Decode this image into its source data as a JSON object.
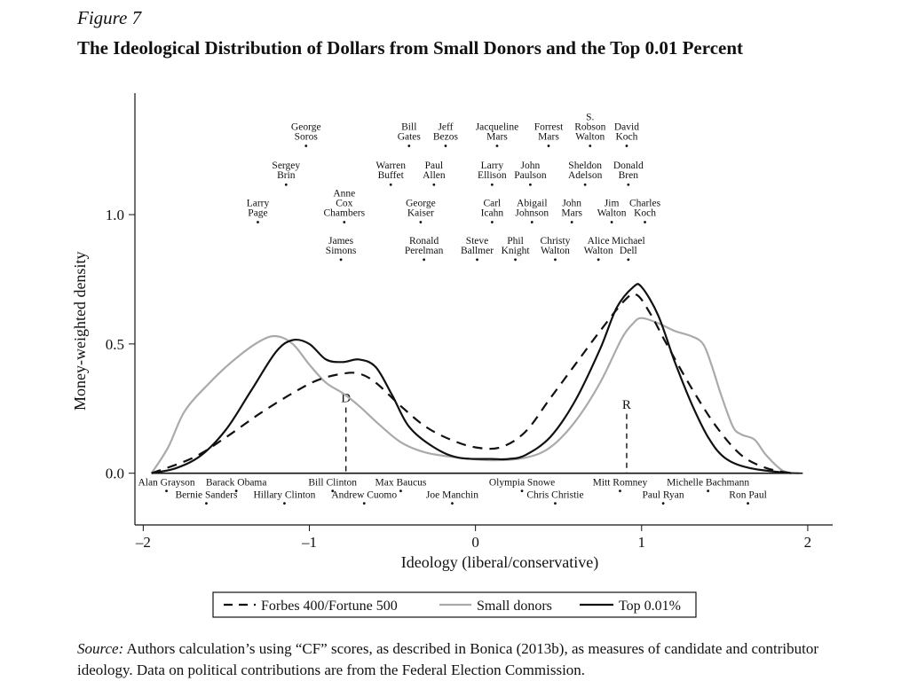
{
  "figure_label": "Figure 7",
  "figure_title": "The Ideological Distribution of Dollars from Small Donors and the Top 0.01 Percent",
  "source_label": "Source:",
  "source_text": " Authors calculation’s using “CF” scores, as described in Bonica (2013b), as measures of candidate and contributor ideology. Data on political contributions are from the Federal Election Commission.",
  "chart_data": {
    "type": "line",
    "title": "The Ideological Distribution of Dollars from Small Donors and the Top 0.01 Percent",
    "xlabel": "Ideology (liberal/conservative)",
    "ylabel": "Money-weighted density",
    "xlim": [
      -2.05,
      2.15
    ],
    "ylim": [
      -0.2,
      1.47
    ],
    "x_ticks": [
      {
        "v": -2,
        "label": "–2"
      },
      {
        "v": -1,
        "label": "–1"
      },
      {
        "v": 0,
        "label": "0"
      },
      {
        "v": 1,
        "label": "1"
      },
      {
        "v": 2,
        "label": "2"
      }
    ],
    "y_ticks": [
      {
        "v": 0,
        "label": "0.0"
      },
      {
        "v": 0.5,
        "label": "0.5"
      },
      {
        "v": 1,
        "label": "1.0"
      }
    ],
    "series": [
      {
        "name": "Forbes 400/Fortune 500",
        "style": "dashed",
        "color": "#111111",
        "points": [
          [
            -1.95,
            0.0
          ],
          [
            -1.7,
            0.06
          ],
          [
            -1.5,
            0.14
          ],
          [
            -1.3,
            0.23
          ],
          [
            -1.1,
            0.31
          ],
          [
            -0.95,
            0.36
          ],
          [
            -0.8,
            0.385
          ],
          [
            -0.7,
            0.385
          ],
          [
            -0.6,
            0.35
          ],
          [
            -0.45,
            0.26
          ],
          [
            -0.3,
            0.18
          ],
          [
            -0.15,
            0.13
          ],
          [
            0,
            0.1
          ],
          [
            0.15,
            0.1
          ],
          [
            0.3,
            0.16
          ],
          [
            0.45,
            0.29
          ],
          [
            0.6,
            0.42
          ],
          [
            0.75,
            0.55
          ],
          [
            0.9,
            0.67
          ],
          [
            0.97,
            0.69
          ],
          [
            1.05,
            0.62
          ],
          [
            1.15,
            0.5
          ],
          [
            1.3,
            0.33
          ],
          [
            1.45,
            0.18
          ],
          [
            1.6,
            0.07
          ],
          [
            1.75,
            0.02
          ],
          [
            1.9,
            0.0
          ]
        ]
      },
      {
        "name": "Small donors",
        "style": "solid",
        "color": "#aaaaaa",
        "points": [
          [
            -1.95,
            0.0
          ],
          [
            -1.85,
            0.1
          ],
          [
            -1.75,
            0.24
          ],
          [
            -1.6,
            0.35
          ],
          [
            -1.45,
            0.44
          ],
          [
            -1.3,
            0.51
          ],
          [
            -1.2,
            0.53
          ],
          [
            -1.1,
            0.5
          ],
          [
            -1.0,
            0.42
          ],
          [
            -0.9,
            0.35
          ],
          [
            -0.8,
            0.31
          ],
          [
            -0.7,
            0.26
          ],
          [
            -0.6,
            0.2
          ],
          [
            -0.45,
            0.12
          ],
          [
            -0.3,
            0.08
          ],
          [
            -0.1,
            0.06
          ],
          [
            0.1,
            0.05
          ],
          [
            0.3,
            0.06
          ],
          [
            0.45,
            0.1
          ],
          [
            0.6,
            0.2
          ],
          [
            0.75,
            0.35
          ],
          [
            0.88,
            0.52
          ],
          [
            0.95,
            0.58
          ],
          [
            1.0,
            0.6
          ],
          [
            1.1,
            0.58
          ],
          [
            1.2,
            0.55
          ],
          [
            1.3,
            0.53
          ],
          [
            1.37,
            0.5
          ],
          [
            1.42,
            0.42
          ],
          [
            1.48,
            0.3
          ],
          [
            1.55,
            0.18
          ],
          [
            1.6,
            0.15
          ],
          [
            1.68,
            0.13
          ],
          [
            1.75,
            0.07
          ],
          [
            1.85,
            0.01
          ],
          [
            1.95,
            0.0
          ]
        ]
      },
      {
        "name": "Top 0.01%",
        "style": "solid",
        "color": "#111111",
        "points": [
          [
            -1.95,
            0.0
          ],
          [
            -1.8,
            0.02
          ],
          [
            -1.65,
            0.07
          ],
          [
            -1.5,
            0.17
          ],
          [
            -1.35,
            0.32
          ],
          [
            -1.2,
            0.47
          ],
          [
            -1.1,
            0.515
          ],
          [
            -1.0,
            0.5
          ],
          [
            -0.9,
            0.44
          ],
          [
            -0.8,
            0.43
          ],
          [
            -0.7,
            0.44
          ],
          [
            -0.6,
            0.41
          ],
          [
            -0.5,
            0.3
          ],
          [
            -0.4,
            0.18
          ],
          [
            -0.25,
            0.1
          ],
          [
            -0.1,
            0.06
          ],
          [
            0.1,
            0.055
          ],
          [
            0.2,
            0.055
          ],
          [
            0.3,
            0.07
          ],
          [
            0.45,
            0.14
          ],
          [
            0.6,
            0.28
          ],
          [
            0.75,
            0.48
          ],
          [
            0.85,
            0.64
          ],
          [
            0.95,
            0.72
          ],
          [
            1.0,
            0.72
          ],
          [
            1.1,
            0.61
          ],
          [
            1.2,
            0.43
          ],
          [
            1.3,
            0.27
          ],
          [
            1.4,
            0.14
          ],
          [
            1.5,
            0.06
          ],
          [
            1.65,
            0.02
          ],
          [
            1.9,
            0.0
          ]
        ]
      }
    ],
    "markers": [
      {
        "label": "D",
        "x": -0.78,
        "top": 0.275
      },
      {
        "label": "R",
        "x": 0.91,
        "top": 0.25
      }
    ],
    "top_names": [
      {
        "lines": [
          "George",
          "Soros"
        ],
        "x": -1.02,
        "y": 1.29
      },
      {
        "lines": [
          "Bill",
          "Gates"
        ],
        "x": -0.4,
        "y": 1.29
      },
      {
        "lines": [
          "Jeff",
          "Bezos"
        ],
        "x": -0.18,
        "y": 1.29
      },
      {
        "lines": [
          "Jacqueline",
          "Mars"
        ],
        "x": 0.13,
        "y": 1.29
      },
      {
        "lines": [
          "Forrest",
          "Mars"
        ],
        "x": 0.44,
        "y": 1.29
      },
      {
        "lines": [
          "S.",
          "Robson",
          "Walton"
        ],
        "x": 0.69,
        "y": 1.29
      },
      {
        "lines": [
          "David",
          "Koch"
        ],
        "x": 0.91,
        "y": 1.29
      },
      {
        "lines": [
          "Sergey",
          "Brin"
        ],
        "x": -1.14,
        "y": 1.14
      },
      {
        "lines": [
          "Warren",
          "Buffet"
        ],
        "x": -0.51,
        "y": 1.14
      },
      {
        "lines": [
          "Paul",
          "Allen"
        ],
        "x": -0.25,
        "y": 1.14
      },
      {
        "lines": [
          "Larry",
          "Ellison"
        ],
        "x": 0.1,
        "y": 1.14
      },
      {
        "lines": [
          "John",
          "Paulson"
        ],
        "x": 0.33,
        "y": 1.14
      },
      {
        "lines": [
          "Sheldon",
          "Adelson"
        ],
        "x": 0.66,
        "y": 1.14
      },
      {
        "lines": [
          "Donald",
          "Bren"
        ],
        "x": 0.92,
        "y": 1.14
      },
      {
        "lines": [
          "Larry",
          "Page"
        ],
        "x": -1.31,
        "y": 0.995
      },
      {
        "lines": [
          "Anne",
          "Cox",
          "Chambers"
        ],
        "x": -0.79,
        "y": 0.995
      },
      {
        "lines": [
          "George",
          "Kaiser"
        ],
        "x": -0.33,
        "y": 0.995
      },
      {
        "lines": [
          "Carl",
          "Icahn"
        ],
        "x": 0.1,
        "y": 0.995
      },
      {
        "lines": [
          "Abigail",
          "Johnson"
        ],
        "x": 0.34,
        "y": 0.995
      },
      {
        "lines": [
          "John",
          "Mars"
        ],
        "x": 0.58,
        "y": 0.995
      },
      {
        "lines": [
          "Jim",
          "Walton"
        ],
        "x": 0.82,
        "y": 0.995
      },
      {
        "lines": [
          "Charles",
          "Koch"
        ],
        "x": 1.02,
        "y": 0.995
      },
      {
        "lines": [
          "James",
          "Simons"
        ],
        "x": -0.81,
        "y": 0.85
      },
      {
        "lines": [
          "Ronald",
          "Perelman"
        ],
        "x": -0.31,
        "y": 0.85
      },
      {
        "lines": [
          "Steve",
          "Ballmer"
        ],
        "x": 0.01,
        "y": 0.85
      },
      {
        "lines": [
          "Phil",
          "Knight"
        ],
        "x": 0.24,
        "y": 0.85
      },
      {
        "lines": [
          "Christy",
          "Walton"
        ],
        "x": 0.48,
        "y": 0.85
      },
      {
        "lines": [
          "Alice",
          "Walton"
        ],
        "x": 0.74,
        "y": 0.85
      },
      {
        "lines": [
          "Michael",
          "Dell"
        ],
        "x": 0.92,
        "y": 0.85
      }
    ],
    "bottom_names": [
      {
        "label": "Alan Grayson",
        "x": -1.86,
        "row": 1
      },
      {
        "label": "Barack Obama",
        "x": -1.44,
        "row": 1
      },
      {
        "label": "Bill Clinton",
        "x": -0.86,
        "row": 1
      },
      {
        "label": "Max Baucus",
        "x": -0.45,
        "row": 1
      },
      {
        "label": "Olympia Snowe",
        "x": 0.28,
        "row": 1
      },
      {
        "label": "Mitt Romney",
        "x": 0.87,
        "row": 1
      },
      {
        "label": "Michelle Bachmann",
        "x": 1.4,
        "row": 1
      },
      {
        "label": "Bernie Sanders",
        "x": -1.62,
        "row": 2
      },
      {
        "label": "Hillary Clinton",
        "x": -1.15,
        "row": 2
      },
      {
        "label": "Andrew Cuomo",
        "x": -0.67,
        "row": 2
      },
      {
        "label": "Joe Manchin",
        "x": -0.14,
        "row": 2
      },
      {
        "label": "Chris Christie",
        "x": 0.48,
        "row": 2
      },
      {
        "label": "Paul Ryan",
        "x": 1.13,
        "row": 2
      },
      {
        "label": "Ron Paul",
        "x": 1.64,
        "row": 2
      }
    ],
    "legend": {
      "items": [
        {
          "label": "Forbes 400/Fortune 500",
          "style": "dashed",
          "color": "#111111"
        },
        {
          "label": "Small donors",
          "style": "solid",
          "color": "#aaaaaa"
        },
        {
          "label": "Top 0.01%",
          "style": "solid",
          "color": "#111111"
        }
      ],
      "position": "bottom-center"
    }
  }
}
